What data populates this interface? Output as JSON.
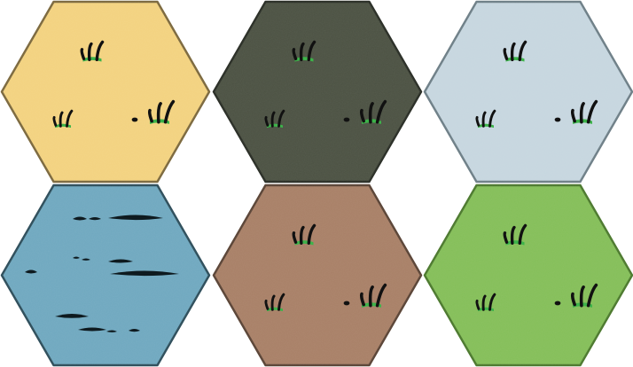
{
  "tiles": [
    {
      "terrain": "sand",
      "fill": "#f3d27f",
      "stroke": "#7d6a3f",
      "decoration": "grass-tufts"
    },
    {
      "terrain": "swamp",
      "fill": "#4b5142",
      "stroke": "#2b2f27",
      "decoration": "grass-tufts"
    },
    {
      "terrain": "snow",
      "fill": "#c6d6df",
      "stroke": "#6f8088",
      "decoration": "grass-tufts"
    },
    {
      "terrain": "water",
      "fill": "#6fa8bf",
      "stroke": "#2f4f5c",
      "decoration": "wave-strokes"
    },
    {
      "terrain": "dirt",
      "fill": "#a87f66",
      "stroke": "#5b4537",
      "decoration": "grass-tufts"
    },
    {
      "terrain": "grassland",
      "fill": "#84be58",
      "stroke": "#4d7a2f",
      "decoration": "grass-tufts"
    }
  ],
  "colors": {
    "tuft_blade": "#111111",
    "tuft_grass": "#3db34a",
    "wave": "#0e1a1f"
  }
}
